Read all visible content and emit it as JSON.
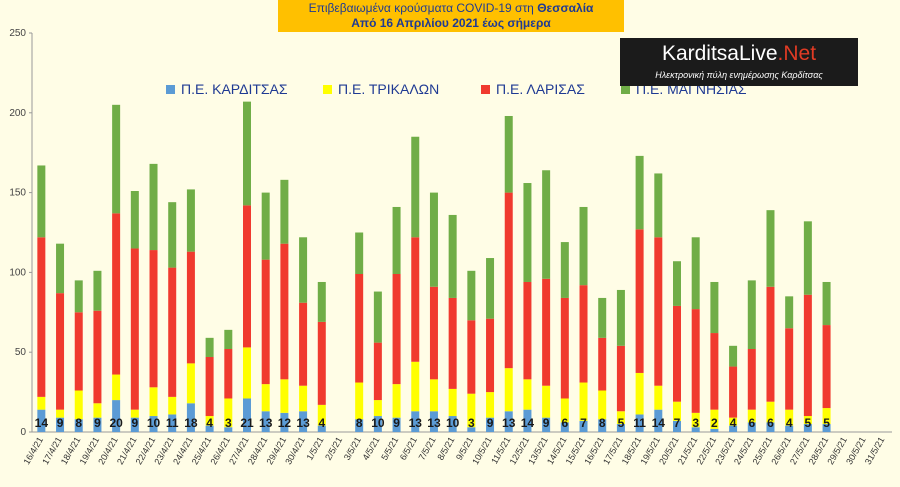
{
  "title": {
    "line1_prefix": "Επιβεβαιωμένα κρούσματα COVID-19 στη",
    "line1_highlight": "Θεσσαλία",
    "line2": "Από 16 Απριλίου 2021 έως σήμερα"
  },
  "logo": {
    "brand_main": "KarditsaLive",
    "brand_suffix": ".Net",
    "tagline": "Ηλεκτρονική πύλη ενημέρωσης Καρδίτσας"
  },
  "colors": {
    "background": "#fffde6",
    "title_bg": "#ffc000",
    "title_text": "#1f3a93"
  },
  "chart_data": {
    "type": "bar",
    "stacked": true,
    "ylim": [
      0,
      250
    ],
    "yticks": [
      0,
      50,
      100,
      150,
      200,
      250
    ],
    "grid": false,
    "legend_position": "top",
    "categories": [
      "16/4/21",
      "17/4/21",
      "18/4/21",
      "19/4/21",
      "20/4/21",
      "21/4/21",
      "22/4/21",
      "23/4/21",
      "24/4/21",
      "25/4/21",
      "26/4/21",
      "27/4/21",
      "28/4/21",
      "29/4/21",
      "30/4/21",
      "1/5/21",
      "2/5/21",
      "3/5/21",
      "4/5/21",
      "5/5/21",
      "6/5/21",
      "7/5/21",
      "8/5/21",
      "9/5/21",
      "10/5/21",
      "11/5/21",
      "12/5/21",
      "13/5/21",
      "14/5/21",
      "15/5/21",
      "16/5/21",
      "17/5/21",
      "18/5/21",
      "19/5/21",
      "20/5/21",
      "21/5/21",
      "22/5/21",
      "23/5/21",
      "24/5/21",
      "25/5/21",
      "26/5/21",
      "27/5/21",
      "28/5/21",
      "29/5/21",
      "30/5/21",
      "31/5/21"
    ],
    "series": [
      {
        "name": "Π.Ε. ΚΑΡΔΙΤΣΑΣ",
        "color": "#5b9bd5",
        "values": [
          14,
          9,
          8,
          9,
          20,
          9,
          10,
          11,
          18,
          4,
          3,
          21,
          13,
          12,
          13,
          4,
          null,
          8,
          10,
          9,
          13,
          13,
          10,
          3,
          9,
          13,
          14,
          9,
          6,
          7,
          8,
          5,
          11,
          14,
          7,
          3,
          2,
          4,
          6,
          6,
          4,
          5,
          5,
          null,
          null,
          null
        ],
        "labels": [
          "14",
          "9",
          "8",
          "9",
          "20",
          "9",
          "10",
          "11",
          "18",
          "4",
          "3",
          "21",
          "13",
          "12",
          "13",
          "4",
          "",
          "8",
          "10",
          "9",
          "13",
          "13",
          "10",
          "3",
          "9",
          "13",
          "14",
          "9",
          "6",
          "7",
          "8",
          "5",
          "11",
          "14",
          "7",
          "3",
          "2",
          "4",
          "6",
          "6",
          "4",
          "5",
          "5",
          "",
          "",
          ""
        ]
      },
      {
        "name": "Π.Ε. ΤΡΙΚΑΛΩΝ",
        "color": "#ffff00",
        "values": [
          8,
          5,
          18,
          9,
          16,
          5,
          18,
          11,
          25,
          6,
          18,
          32,
          17,
          21,
          16,
          13,
          null,
          23,
          10,
          21,
          31,
          20,
          17,
          21,
          16,
          27,
          19,
          20,
          15,
          24,
          18,
          8,
          26,
          15,
          12,
          9,
          12,
          5,
          8,
          13,
          10,
          5,
          10,
          null,
          null,
          null
        ]
      },
      {
        "name": "Π.Ε. ΛΑΡΙΣΑΣ",
        "color": "#f03a2e",
        "values": [
          100,
          73,
          49,
          58,
          101,
          101,
          86,
          81,
          70,
          37,
          31,
          89,
          78,
          85,
          52,
          52,
          null,
          68,
          36,
          69,
          78,
          58,
          57,
          46,
          46,
          110,
          61,
          67,
          63,
          61,
          33,
          41,
          90,
          93,
          60,
          65,
          48,
          32,
          38,
          72,
          51,
          76,
          52,
          null,
          null,
          null
        ]
      },
      {
        "name": "Π.Ε. ΜΑΓΝΗΣΙΑΣ",
        "color": "#70ad47",
        "values": [
          45,
          31,
          20,
          25,
          68,
          36,
          54,
          41,
          39,
          12,
          12,
          65,
          42,
          40,
          41,
          25,
          null,
          26,
          32,
          42,
          63,
          59,
          52,
          31,
          38,
          48,
          62,
          68,
          35,
          49,
          25,
          35,
          46,
          40,
          28,
          45,
          32,
          13,
          43,
          48,
          20,
          46,
          27,
          null,
          null,
          null
        ]
      }
    ]
  }
}
